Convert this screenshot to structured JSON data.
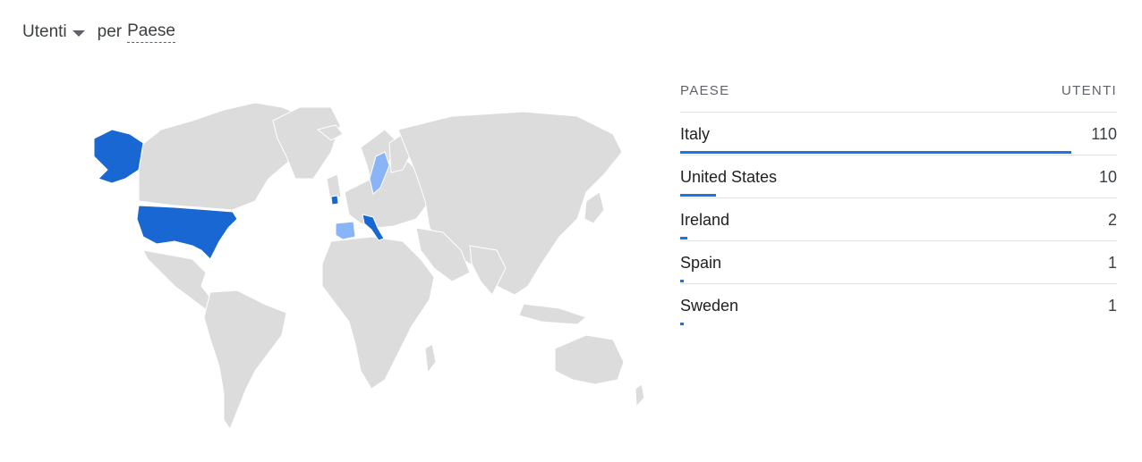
{
  "header": {
    "metric_label": "Utenti",
    "per_label": "per",
    "dimension_label": "Paese"
  },
  "table": {
    "col_country": "PAESE",
    "col_users": "UTENTI",
    "rows": [
      {
        "country": "Italy",
        "users": "110",
        "value": 110
      },
      {
        "country": "United States",
        "users": "10",
        "value": 10
      },
      {
        "country": "Ireland",
        "users": "2",
        "value": 2
      },
      {
        "country": "Spain",
        "users": "1",
        "value": 1
      },
      {
        "country": "Sweden",
        "users": "1",
        "value": 1
      }
    ]
  },
  "colors": {
    "dark_blue": "#1967d2",
    "light_blue": "#8ab4f8",
    "land": "#dcdcdc",
    "bar": "#1a73e8"
  },
  "map": {
    "highlighted": [
      {
        "country": "United States",
        "shade": "dark"
      },
      {
        "country": "Italy",
        "shade": "dark"
      },
      {
        "country": "Sweden",
        "shade": "light"
      },
      {
        "country": "Spain",
        "shade": "light"
      },
      {
        "country": "Ireland",
        "shade": "dark"
      }
    ]
  }
}
